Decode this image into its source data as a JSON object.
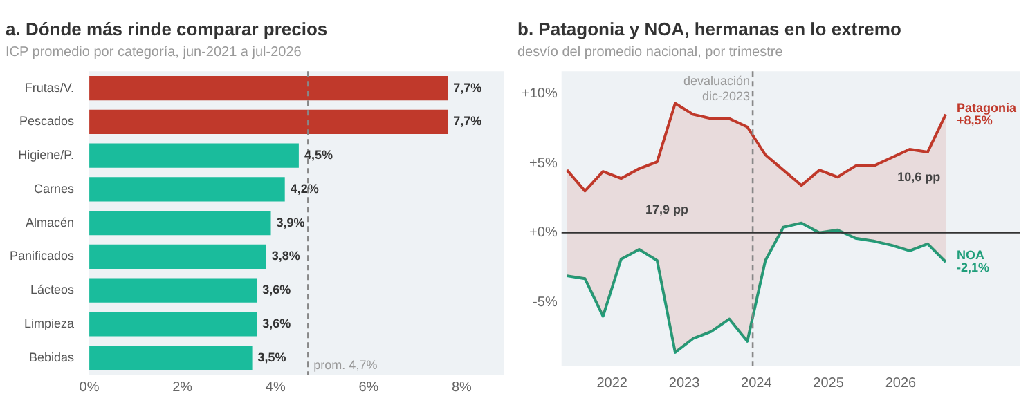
{
  "chart_data": [
    {
      "type": "bar",
      "orientation": "horizontal",
      "title": "a. Dónde más rinde comparar precios",
      "subtitle": "ICP promedio por categoría, jun-2021 a jul-2026",
      "categories": [
        "Frutas/V.",
        "Pescados",
        "Higiene/P.",
        "Carnes",
        "Almacén",
        "Panificados",
        "Lácteos",
        "Limpieza",
        "Bebidas"
      ],
      "values": [
        7.7,
        7.7,
        4.5,
        4.2,
        3.9,
        3.8,
        3.6,
        3.6,
        3.5
      ],
      "value_labels": [
        "7,7%",
        "7,7%",
        "4,5%",
        "4,2%",
        "3,9%",
        "3,8%",
        "3,6%",
        "3,6%",
        "3,5%"
      ],
      "colors": [
        "#c0392b",
        "#c0392b",
        "#1abc9c",
        "#1abc9c",
        "#1abc9c",
        "#1abc9c",
        "#1abc9c",
        "#1abc9c",
        "#1abc9c"
      ],
      "xlim": [
        0,
        8.9
      ],
      "xticks": [
        {
          "value": 0,
          "label": "0%"
        },
        {
          "value": 2,
          "label": "2%"
        },
        {
          "value": 4,
          "label": "4%"
        },
        {
          "value": 6,
          "label": "6%"
        },
        {
          "value": 8,
          "label": "8%"
        }
      ],
      "ref_lines": [
        {
          "axis": "x",
          "value": 4.7,
          "label": "prom. 4,7%",
          "color": "#888888",
          "line_style": "dashed"
        }
      ],
      "grid": false,
      "legend": false
    },
    {
      "type": "line",
      "title": "b. Patagonia y NOA, hermanas en lo extremo",
      "subtitle": "desvío del promedio nacional, por trimestre",
      "x": [
        2021.375,
        2021.625,
        2021.875,
        2022.125,
        2022.375,
        2022.625,
        2022.875,
        2023.125,
        2023.375,
        2023.625,
        2023.875,
        2024.125,
        2024.375,
        2024.625,
        2024.875,
        2025.125,
        2025.375,
        2025.625,
        2025.875,
        2026.125,
        2026.375,
        2026.625
      ],
      "series": [
        {
          "name": "Patagonia",
          "color": "#c0392b",
          "values": [
            4.5,
            3.0,
            4.4,
            3.9,
            4.6,
            5.1,
            9.3,
            8.5,
            8.2,
            8.2,
            7.6,
            5.6,
            4.5,
            3.4,
            4.5,
            4.0,
            4.8,
            4.8,
            5.4,
            6.0,
            5.8,
            8.5
          ],
          "value_labels": [
            null,
            null,
            null,
            null,
            null,
            null,
            null,
            null,
            null,
            null,
            null,
            null,
            null,
            null,
            null,
            null,
            null,
            null,
            null,
            null,
            null,
            "+8,5%"
          ],
          "lower": [
            -3.1,
            -3.3,
            -6.0,
            -1.9,
            -1.2,
            -2.0,
            -8.6,
            -7.6,
            -7.1,
            -6.2,
            -7.8,
            -2.0,
            0.4,
            0.7,
            0.0,
            0.2,
            -0.4,
            -0.6,
            -0.9,
            -1.3,
            -0.8,
            -2.1
          ],
          "upper": [
            4.5,
            3.0,
            4.4,
            3.9,
            4.6,
            5.1,
            9.3,
            8.5,
            8.2,
            8.2,
            7.6,
            5.6,
            4.5,
            3.4,
            4.5,
            4.0,
            4.8,
            4.8,
            5.4,
            6.0,
            5.8,
            8.5
          ]
        },
        {
          "name": "NOA",
          "color": "#1f9e7a",
          "values": [
            -3.1,
            -3.3,
            -6.0,
            -1.9,
            -1.2,
            -2.0,
            -8.6,
            -7.6,
            -7.1,
            -6.2,
            -7.8,
            -2.0,
            0.4,
            0.7,
            0.0,
            0.2,
            -0.4,
            -0.6,
            -0.9,
            -1.3,
            -0.8,
            -2.1
          ],
          "value_labels": [
            null,
            null,
            null,
            null,
            null,
            null,
            null,
            null,
            null,
            null,
            null,
            null,
            null,
            null,
            null,
            null,
            null,
            null,
            null,
            null,
            null,
            "-2,1%"
          ]
        }
      ],
      "xlim": [
        2021.3,
        2027.65
      ],
      "xticks": [
        2022,
        2023,
        2024,
        2025,
        2026
      ],
      "ylim": [
        -9.6,
        11.6
      ],
      "yticks": [
        {
          "value": -5,
          "label": "-5%"
        },
        {
          "value": 0,
          "label": "+0%"
        },
        {
          "value": 5,
          "label": "+5%"
        },
        {
          "value": 10,
          "label": "+10%"
        }
      ],
      "ref_lines": [
        {
          "axis": "x",
          "value": 2023.95,
          "label": "devaluación\ndic-2023",
          "color": "#888888",
          "line_style": "dashed"
        },
        {
          "axis": "y",
          "value": 0,
          "color": "#333333",
          "line_style": "solid"
        }
      ],
      "annotations": [
        "17,9 pp",
        "10,6 pp"
      ],
      "grid": false,
      "legend": false,
      "marker": "none",
      "line_style": "solid"
    }
  ]
}
